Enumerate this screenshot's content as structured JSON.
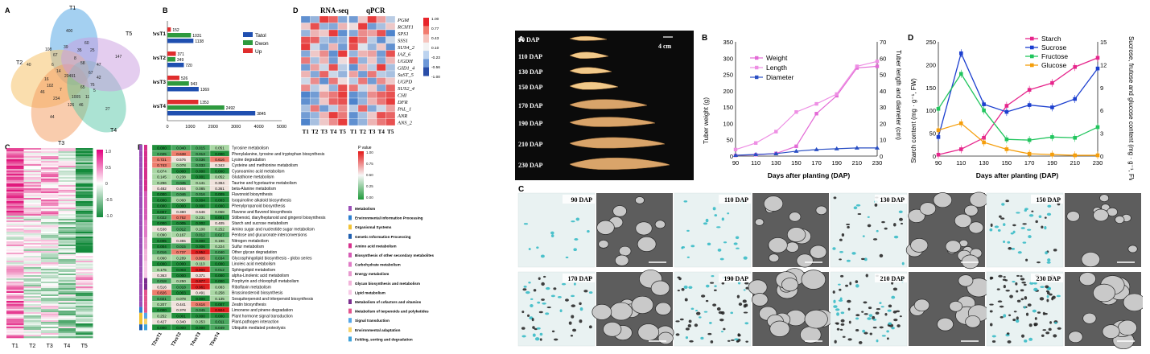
{
  "left_figure": {
    "panel_labels": {
      "a": "A",
      "b": "B",
      "c": "C",
      "d": "D",
      "e": "E"
    },
    "venn": {
      "sets": [
        {
          "name": "T1",
          "color": "#5aa9e6"
        },
        {
          "name": "T2",
          "color": "#f5c26b"
        },
        {
          "name": "T3",
          "color": "#f39a5c"
        },
        {
          "name": "T4",
          "color": "#58c7a8"
        },
        {
          "name": "T5",
          "color": "#c99be0"
        }
      ],
      "numbers": [
        "400",
        "147",
        "27",
        "44",
        "40",
        "20491",
        "60",
        "108",
        "67",
        "39",
        "35",
        "25",
        "47",
        "58",
        "16",
        "102",
        "46",
        "42",
        "67",
        "76",
        "234",
        "1005",
        "126",
        "46",
        "11",
        "14",
        "8",
        "7",
        "65",
        "6",
        "5"
      ]
    },
    "bar_chart": {
      "type": "bar",
      "categories": [
        "T2vsT1",
        "T3vsT2",
        "T4vsT3",
        "T5vsT4"
      ],
      "series": [
        {
          "name": "Tatol",
          "color": "#1f4fb0",
          "values": [
            1138,
            720,
            1369,
            3845
          ]
        },
        {
          "name": "Dwon",
          "color": "#2e9a3e",
          "values": [
            1031,
            349,
            943,
            2492
          ]
        },
        {
          "name": "Up",
          "color": "#e02d2d",
          "values": [
            152,
            371,
            526,
            1353
          ]
        }
      ],
      "xticks": [
        "0",
        "1000",
        "2000",
        "3000",
        "4000",
        "5000"
      ],
      "xlim": [
        0,
        5000
      ]
    },
    "heatmap_c": {
      "xlabels": [
        "T1",
        "T2",
        "T3",
        "T4",
        "T5"
      ],
      "scale": [
        "1.0",
        "0.5",
        "0",
        "-0.5",
        "-1.0"
      ]
    },
    "heatmap_d": {
      "titles": [
        "RNA-seq",
        "qPCR"
      ],
      "genes": [
        "PGM",
        "RCHY1",
        "SPS1",
        "SSS1",
        "SUS4_2",
        "IAZ_6",
        "UGDH",
        "GID1_4",
        "SuST_5",
        "UGPD",
        "SUS2_4",
        "CHI",
        "DFR",
        "PAL_1",
        "ANR",
        "ANS_2"
      ],
      "xlabels": [
        "T1",
        "T2",
        "T3",
        "T4",
        "T5",
        "T1",
        "T2",
        "T3",
        "T4",
        "T5"
      ],
      "scale": [
        "1.00",
        "0.77",
        "0.43",
        "0.10",
        "-0.23",
        "-0.56",
        "-1.00"
      ],
      "values": [
        [
          -0.8,
          -0.5,
          0.9,
          0.7,
          -0.6,
          -0.7,
          0.2,
          0.9,
          0.4,
          -0.3
        ],
        [
          0.2,
          0.8,
          -0.5,
          -0.6,
          0.3,
          0.1,
          0.9,
          -0.7,
          -0.4,
          0.2
        ],
        [
          -0.5,
          0.3,
          0.2,
          0.9,
          -0.8,
          -0.6,
          0.5,
          0.4,
          0.8,
          -0.9
        ],
        [
          0.8,
          0.7,
          -0.4,
          -0.6,
          -0.5,
          0.9,
          0.6,
          -0.3,
          -0.8,
          -0.2
        ],
        [
          0.9,
          -0.2,
          -0.6,
          0.3,
          -0.7,
          0.8,
          -0.1,
          -0.5,
          0.2,
          -0.8
        ],
        [
          -0.6,
          0.2,
          0.5,
          -0.8,
          0.9,
          -0.5,
          0.3,
          0.4,
          -0.7,
          0.8
        ],
        [
          0.6,
          -0.4,
          0.3,
          -0.7,
          0.1,
          0.7,
          -0.5,
          0.2,
          -0.6,
          0.3
        ],
        [
          -0.7,
          0.4,
          -0.2,
          0.8,
          -0.3,
          -0.8,
          0.3,
          -0.3,
          0.9,
          -0.4
        ],
        [
          0.3,
          -0.6,
          0.7,
          -0.2,
          -0.5,
          0.4,
          -0.7,
          0.6,
          -0.3,
          -0.4
        ],
        [
          -0.2,
          0.5,
          -0.8,
          0.6,
          0.1,
          -0.3,
          0.6,
          -0.7,
          0.5,
          0.2
        ],
        [
          0.5,
          -0.3,
          0.1,
          -0.5,
          0.8,
          0.6,
          -0.2,
          0.2,
          -0.6,
          0.7
        ],
        [
          -0.9,
          -0.7,
          0.4,
          0.6,
          0.9,
          -0.8,
          -0.6,
          0.5,
          0.7,
          0.8
        ],
        [
          -0.8,
          -0.6,
          0.2,
          0.7,
          0.8,
          -0.9,
          -0.5,
          0.3,
          0.6,
          0.9
        ],
        [
          -0.4,
          0.6,
          -0.7,
          -0.3,
          0.5,
          -0.3,
          0.7,
          -0.6,
          -0.2,
          0.4
        ],
        [
          -0.7,
          -0.5,
          0.3,
          0.9,
          0.6,
          -0.8,
          -0.4,
          0.2,
          0.8,
          0.7
        ],
        [
          -0.9,
          -0.4,
          0.2,
          0.5,
          0.9,
          -0.8,
          -0.5,
          0.3,
          0.6,
          0.8
        ]
      ]
    },
    "pathways_e": {
      "columns": [
        "T2vsT1",
        "T3vsT2",
        "T4vsT3",
        "T5vsT4"
      ],
      "legend_title": "P value",
      "legend_scale": [
        "1.00",
        "0.75",
        "0.50",
        "0.25",
        "0.00"
      ],
      "rows": [
        {
          "name": "Tyrosine metabolism",
          "v": [
            "0.000",
            "0.040",
            "0.015",
            "0.051"
          ]
        },
        {
          "name": "Phenylalanine, tyrosine and tryptophan biosynthesis",
          "v": [
            "0.025",
            "0.638",
            "0.013",
            "0.000"
          ]
        },
        {
          "name": "Lysine degradation",
          "v": [
            "0.721",
            "0.576",
            "0.036",
            "0.616"
          ]
        },
        {
          "name": "Cysteine and methionine metabolism",
          "v": [
            "0.743",
            "0.078",
            "0.033",
            "0.343"
          ]
        },
        {
          "name": "Cyanoamino acid metabolism",
          "v": [
            "0.074",
            "0.000",
            "0.000",
            "0.000"
          ]
        },
        {
          "name": "Glutathione metabolism",
          "v": [
            "0.145",
            "0.238",
            "0.001",
            "0.052"
          ]
        },
        {
          "name": "Taurine and hypotaurine metabolism",
          "v": [
            "0.296",
            "0.045",
            "0.141",
            "0.394"
          ]
        },
        {
          "name": "beta-Alanine metabolism",
          "v": [
            "0.482",
            "0.404",
            "0.085",
            "0.361"
          ]
        },
        {
          "name": "Flavonoid biosynthesis",
          "v": [
            "0.000",
            "0.046",
            "0.016",
            "0.009"
          ]
        },
        {
          "name": "Isoquinoline alkaloid biosynthesis",
          "v": [
            "0.000",
            "0.060",
            "0.004",
            "0.003"
          ]
        },
        {
          "name": "Phenylpropanoid biosynthesis",
          "v": [
            "0.000",
            "0.000",
            "0.000",
            "0.000"
          ]
        },
        {
          "name": "Flavone and flavonol biosynthesis",
          "v": [
            "0.007",
            "0.380",
            "0.546",
            "0.068"
          ]
        },
        {
          "name": "Stilbenoid, diarylheptanoid and gingerol biosynthesis",
          "v": [
            "0.022",
            "0.762",
            "0.231",
            "0.001"
          ]
        },
        {
          "name": "Starch and sucrose metabolism",
          "v": [
            "0.000",
            "0.005",
            "0.002",
            "0.405"
          ]
        },
        {
          "name": "Amino sugar and nucleotide sugar metabolism",
          "v": [
            "0.538",
            "0.012",
            "0.108",
            "0.252"
          ]
        },
        {
          "name": "Pentose and glucuronate interconversions",
          "v": [
            "0.090",
            "0.167",
            "0.012",
            "0.027"
          ]
        },
        {
          "name": "Nitrogen metabolism",
          "v": [
            "0.005",
            "0.355",
            "0.000",
            "0.196"
          ]
        },
        {
          "name": "Sulfur metabolism",
          "v": [
            "0.004",
            "0.015",
            "0.006",
            "0.224"
          ]
        },
        {
          "name": "Other glycan degradation",
          "v": [
            "0.016",
            "0.737",
            "0.952",
            "0.040"
          ]
        },
        {
          "name": "Glycosphingolipid biosynthesis - globo series",
          "v": [
            "0.060",
            "0.289",
            "0.805",
            "0.034"
          ]
        },
        {
          "name": "Linoleic acid metabolism",
          "v": [
            "0.000",
            "0.000",
            "0.113",
            "0.000"
          ]
        },
        {
          "name": "Sphingolipid metabolism",
          "v": [
            "0.175",
            "0.003",
            "0.900",
            "0.012"
          ]
        },
        {
          "name": "alpha-Linolenic acid metabolism",
          "v": [
            "0.363",
            "0.000",
            "0.371",
            "0.000"
          ]
        },
        {
          "name": "Porphyrin and chlorophyll metabolism",
          "v": [
            "0.018",
            "0.250",
            "0.977",
            "0.000"
          ]
        },
        {
          "name": "Riboflavin metabolism",
          "v": [
            "0.516",
            "0.018",
            "0.961",
            "0.083"
          ]
        },
        {
          "name": "Brassinosteroid biosynthesis",
          "v": [
            "0.826",
            "0.003",
            "0.491",
            "0.258"
          ]
        },
        {
          "name": "Sesquiterpenoid and triterpenoid biosynthesis",
          "v": [
            "0.021",
            "0.078",
            "0.000",
            "0.135"
          ]
        },
        {
          "name": "Zeatin biosynthesis",
          "v": [
            "0.207",
            "0.441",
            "0.616",
            "0.007"
          ]
        },
        {
          "name": "Limonene and pinene degradation",
          "v": [
            "0.000",
            "0.378",
            "0.045",
            "0.924"
          ]
        },
        {
          "name": "Plant hormone signal transduction",
          "v": [
            "0.252",
            "0.001",
            "0.000",
            "0.000"
          ]
        },
        {
          "name": "Plant-pathogen interaction",
          "v": [
            "0.427",
            "0.340",
            "0.253",
            "0.011"
          ]
        },
        {
          "name": "Ubiquitin mediated proteolysis",
          "v": [
            "0.000",
            "0.000",
            "0.000",
            "0.049"
          ]
        }
      ],
      "categories": [
        {
          "name": "Metabolism",
          "color": "#9b4fb8"
        },
        {
          "name": "Environmental Information Processing",
          "color": "#2c7fd1"
        },
        {
          "name": "Organismal Systems",
          "color": "#f2c233"
        },
        {
          "name": "Genetic Information Processing",
          "color": "#1f5fb0"
        },
        {
          "name": "Amino acid metabolism",
          "color": "#d62f8c"
        },
        {
          "name": "Biosynthesis of other secondary metabolites",
          "color": "#d65bb5"
        },
        {
          "name": "Carbohydrate metabolism",
          "color": "#e07bc6"
        },
        {
          "name": "Energy metabolism",
          "color": "#e79acf"
        },
        {
          "name": "Glycan biosynthesis and metabolism",
          "color": "#f2b4da"
        },
        {
          "name": "Lipid metabolism",
          "color": "#f7c9e6"
        },
        {
          "name": "Metabolism of cofactors and vitamins",
          "color": "#7c2f8f"
        },
        {
          "name": "Metabolism of terpenoids and polyketides",
          "color": "#e3558e"
        },
        {
          "name": "Signal transduction",
          "color": "#56a7e8"
        },
        {
          "name": "Environmental adaptation",
          "color": "#f6d46b"
        },
        {
          "name": "Folding, sorting and degradation",
          "color": "#3fa2d9"
        }
      ]
    }
  },
  "right_figure": {
    "panel_labels": {
      "a": "A",
      "b": "B",
      "c": "C",
      "d": "D"
    },
    "tuber_photos": {
      "labels": [
        "90 DAP",
        "110 DAP",
        "130 DAP",
        "150 DAP",
        "170 DAP",
        "190 DAP",
        "210 DAP",
        "230 DAP"
      ],
      "scale_label": "4 cm"
    },
    "growth_chart": {
      "type": "line",
      "x": [
        90,
        110,
        130,
        150,
        170,
        190,
        210,
        230
      ],
      "xlabel": "Days after planting (DAP)",
      "ylabel": "Tuber weight (g)",
      "y2label": "Tuber length and diameter (cm)",
      "ylim": [
        0,
        350
      ],
      "y2lim": [
        0,
        70
      ],
      "yticks": [
        "0",
        "50",
        "100",
        "150",
        "200",
        "250",
        "300",
        "350"
      ],
      "y2ticks": [
        "0",
        "10",
        "20",
        "30",
        "40",
        "50",
        "60",
        "70"
      ],
      "series": [
        {
          "name": "Weight",
          "axis": "left",
          "color": "#e36ad6",
          "marker": "square",
          "values": [
            2,
            4,
            8,
            30,
            130,
            185,
            270,
            275
          ]
        },
        {
          "name": "Length",
          "axis": "right",
          "color": "#ee8fe4",
          "marker": "square",
          "values": [
            4,
            8,
            15,
            27,
            32,
            38,
            55,
            58
          ]
        },
        {
          "name": "Diameter",
          "axis": "right",
          "color": "#2a4fc4",
          "marker": "triangle",
          "values": [
            0.5,
            1.0,
            1.5,
            3.0,
            4.0,
            4.5,
            5.0,
            5.0
          ]
        }
      ]
    },
    "sugar_chart": {
      "type": "line",
      "x": [
        90,
        110,
        130,
        150,
        170,
        190,
        210,
        230
      ],
      "xlabel": "Days after planting (DAP)",
      "ylabel": "Starch content (mg · g⁻¹, FW)",
      "y2label": "Sucrose, frutose and glucose content (mg · g⁻¹, FW)",
      "ylim": [
        0,
        250
      ],
      "y2lim": [
        0,
        15
      ],
      "yticks": [
        "0",
        "50",
        "100",
        "150",
        "200",
        "250"
      ],
      "y2ticks": [
        "0",
        "3",
        "6",
        "9",
        "12",
        "15"
      ],
      "series": [
        {
          "name": "Starch",
          "axis": "left",
          "color": "#e6268c",
          "values": [
            3,
            15,
            40,
            110,
            145,
            160,
            195,
            215
          ]
        },
        {
          "name": "Sucrose",
          "axis": "right",
          "color": "#1c3fcf",
          "values": [
            2.5,
            13.5,
            6.8,
            5.8,
            6.7,
            6.4,
            7.5,
            11.5
          ]
        },
        {
          "name": "Fructose",
          "axis": "right",
          "color": "#22c55e",
          "values": [
            6.2,
            10.8,
            6.0,
            2.2,
            2.1,
            2.5,
            2.4,
            3.8
          ]
        },
        {
          "name": "Glucose",
          "axis": "right",
          "color": "#f59e0b",
          "values": [
            3.4,
            4.3,
            1.8,
            0.9,
            0.3,
            0.2,
            0.1,
            0.1
          ]
        }
      ]
    },
    "micrographs": {
      "labels": [
        "90 DAP",
        "110 DAP",
        "130 DAP",
        "150 DAP",
        "170 DAP",
        "190 DAP",
        "210 DAP",
        "230 DAP"
      ]
    }
  }
}
